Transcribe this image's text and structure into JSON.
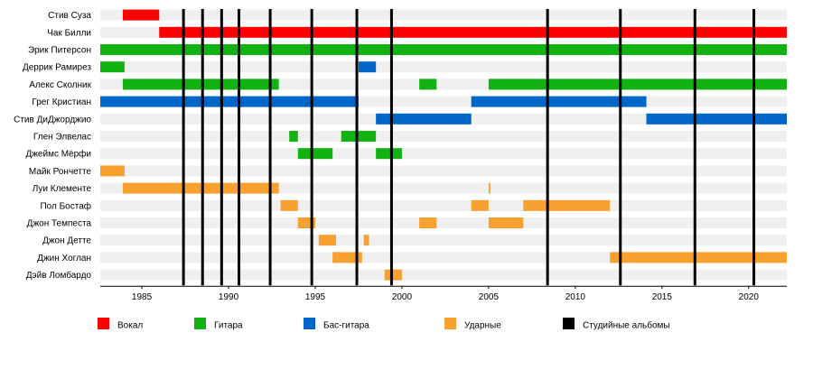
{
  "chart_data": {
    "type": "timeline",
    "title": "",
    "x_range": [
      1982.6,
      2022.2
    ],
    "x_ticks": [
      1985,
      1990,
      1995,
      2000,
      2005,
      2010,
      2015,
      2020
    ],
    "members": [
      {
        "name": "Стив Суза"
      },
      {
        "name": "Чак Билли"
      },
      {
        "name": "Эрик Питерсон"
      },
      {
        "name": "Деррик Рамирез"
      },
      {
        "name": "Алекс Сколник"
      },
      {
        "name": "Грег Кристиан"
      },
      {
        "name": "Стив ДиДжорджио"
      },
      {
        "name": "Глен Элвелас"
      },
      {
        "name": "Джеймс Мёрфи"
      },
      {
        "name": "Майк Рончетте"
      },
      {
        "name": "Луи Клементе"
      },
      {
        "name": "Пол Бостаф"
      },
      {
        "name": "Джон Темпеста"
      },
      {
        "name": "Джон Детте"
      },
      {
        "name": "Джин Хоглан"
      },
      {
        "name": "Дэйв Ломбардо"
      }
    ],
    "bars": [
      {
        "member": 0,
        "role": "vocals",
        "start": 1983.9,
        "end": 1986.0
      },
      {
        "member": 1,
        "role": "vocals",
        "start": 1986.0,
        "end": 2022.2
      },
      {
        "member": 2,
        "role": "guitar",
        "start": 1982.6,
        "end": 2022.2
      },
      {
        "member": 3,
        "role": "guitar",
        "start": 1982.6,
        "end": 1984.0
      },
      {
        "member": 3,
        "role": "bass",
        "start": 1997.5,
        "end": 1998.5
      },
      {
        "member": 4,
        "role": "guitar",
        "start": 1983.9,
        "end": 1992.9
      },
      {
        "member": 4,
        "role": "guitar",
        "start": 2001.0,
        "end": 2002.0
      },
      {
        "member": 4,
        "role": "guitar",
        "start": 2005.0,
        "end": 2022.2
      },
      {
        "member": 5,
        "role": "bass",
        "start": 1982.6,
        "end": 1997.5
      },
      {
        "member": 5,
        "role": "bass",
        "start": 2004.0,
        "end": 2014.1
      },
      {
        "member": 6,
        "role": "bass",
        "start": 1998.5,
        "end": 2004.0
      },
      {
        "member": 6,
        "role": "bass",
        "start": 2014.1,
        "end": 2022.2
      },
      {
        "member": 7,
        "role": "guitar",
        "start": 1993.5,
        "end": 1994.0
      },
      {
        "member": 7,
        "role": "guitar",
        "start": 1996.5,
        "end": 1998.5
      },
      {
        "member": 8,
        "role": "guitar",
        "start": 1994.0,
        "end": 1996.0
      },
      {
        "member": 8,
        "role": "guitar",
        "start": 1998.5,
        "end": 2000.0
      },
      {
        "member": 9,
        "role": "drums",
        "start": 1982.6,
        "end": 1984.0
      },
      {
        "member": 10,
        "role": "drums",
        "start": 1983.9,
        "end": 1992.9
      },
      {
        "member": 10,
        "role": "drums",
        "start": 2005.0,
        "end": 2005.1
      },
      {
        "member": 11,
        "role": "drums",
        "start": 1993.0,
        "end": 1994.0
      },
      {
        "member": 11,
        "role": "drums",
        "start": 2004.0,
        "end": 2005.0
      },
      {
        "member": 11,
        "role": "drums",
        "start": 2007.0,
        "end": 2012.0
      },
      {
        "member": 12,
        "role": "drums",
        "start": 1994.0,
        "end": 1995.0
      },
      {
        "member": 12,
        "role": "drums",
        "start": 2001.0,
        "end": 2002.0
      },
      {
        "member": 12,
        "role": "drums",
        "start": 2005.0,
        "end": 2007.0
      },
      {
        "member": 13,
        "role": "drums",
        "start": 1995.2,
        "end": 1996.2
      },
      {
        "member": 13,
        "role": "drums",
        "start": 1997.8,
        "end": 1998.1
      },
      {
        "member": 14,
        "role": "drums",
        "start": 1996.0,
        "end": 1997.7
      },
      {
        "member": 14,
        "role": "drums",
        "start": 2012.0,
        "end": 2022.2
      },
      {
        "member": 15,
        "role": "drums",
        "start": 1999.0,
        "end": 2000.0
      }
    ],
    "album_lines": [
      1987.4,
      1988.5,
      1989.6,
      1990.6,
      1992.4,
      1994.8,
      1997.4,
      1999.4,
      2008.4,
      2012.6,
      2016.9,
      2020.3
    ],
    "roles": [
      {
        "key": "vocals",
        "label": "Вокал",
        "color": "#ff0000"
      },
      {
        "key": "guitar",
        "label": "Гитара",
        "color": "#12b212"
      },
      {
        "key": "bass",
        "label": "Бас-гитара",
        "color": "#0066c8"
      },
      {
        "key": "drums",
        "label": "Ударные",
        "color": "#f8a030"
      },
      {
        "key": "albums",
        "label": "Студийные альбомы",
        "color": "#000000"
      }
    ],
    "row_stripe_color": "#efefef"
  }
}
